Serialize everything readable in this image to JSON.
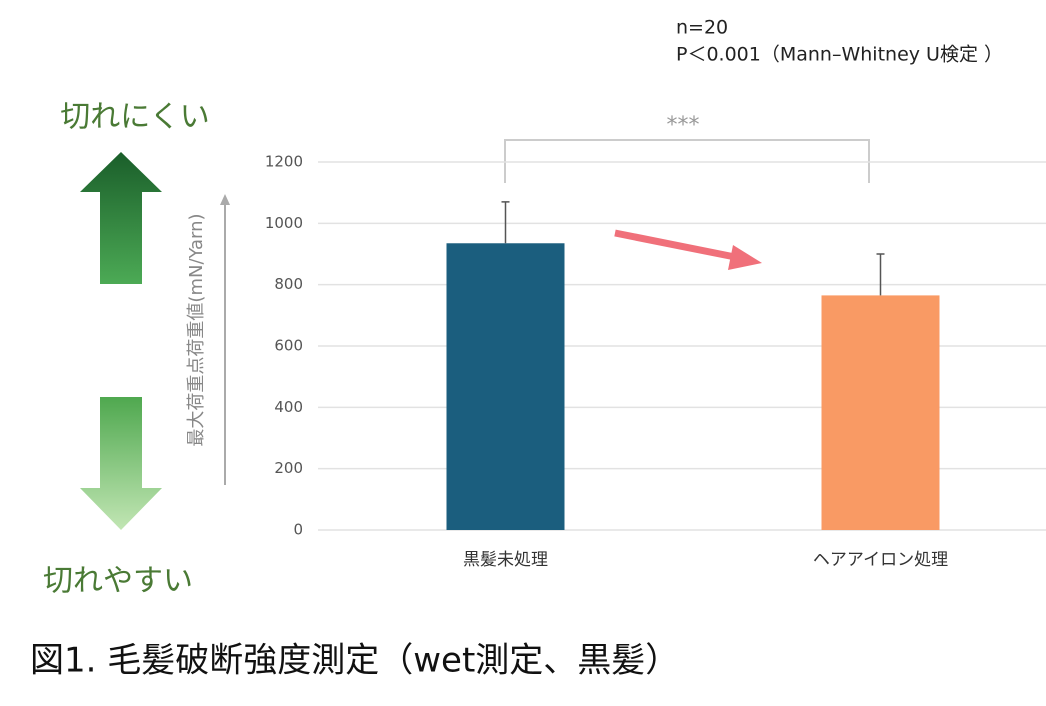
{
  "chart_data": {
    "type": "bar",
    "categories": [
      "黒髪未処理",
      "ヘアアイロン処理"
    ],
    "values": [
      935,
      765
    ],
    "errors": [
      135,
      135
    ],
    "colors": [
      "#1b5e7e",
      "#f99a64"
    ],
    "ylabel": "最大荷重点荷重値(mN/Yarn)",
    "ylim": [
      0,
      1200
    ],
    "yticks": [
      0,
      200,
      400,
      600,
      800,
      1000,
      1200
    ],
    "grid": true,
    "annotations": {
      "n": "n=20",
      "p": "P＜0.001（Mann–Whitney U検定 ）",
      "significance": "***",
      "strong": "切れにくい",
      "weak": "切れやすい"
    },
    "caption": "図1. 毛髪破断強度測定（wet測定、黒髪）"
  }
}
